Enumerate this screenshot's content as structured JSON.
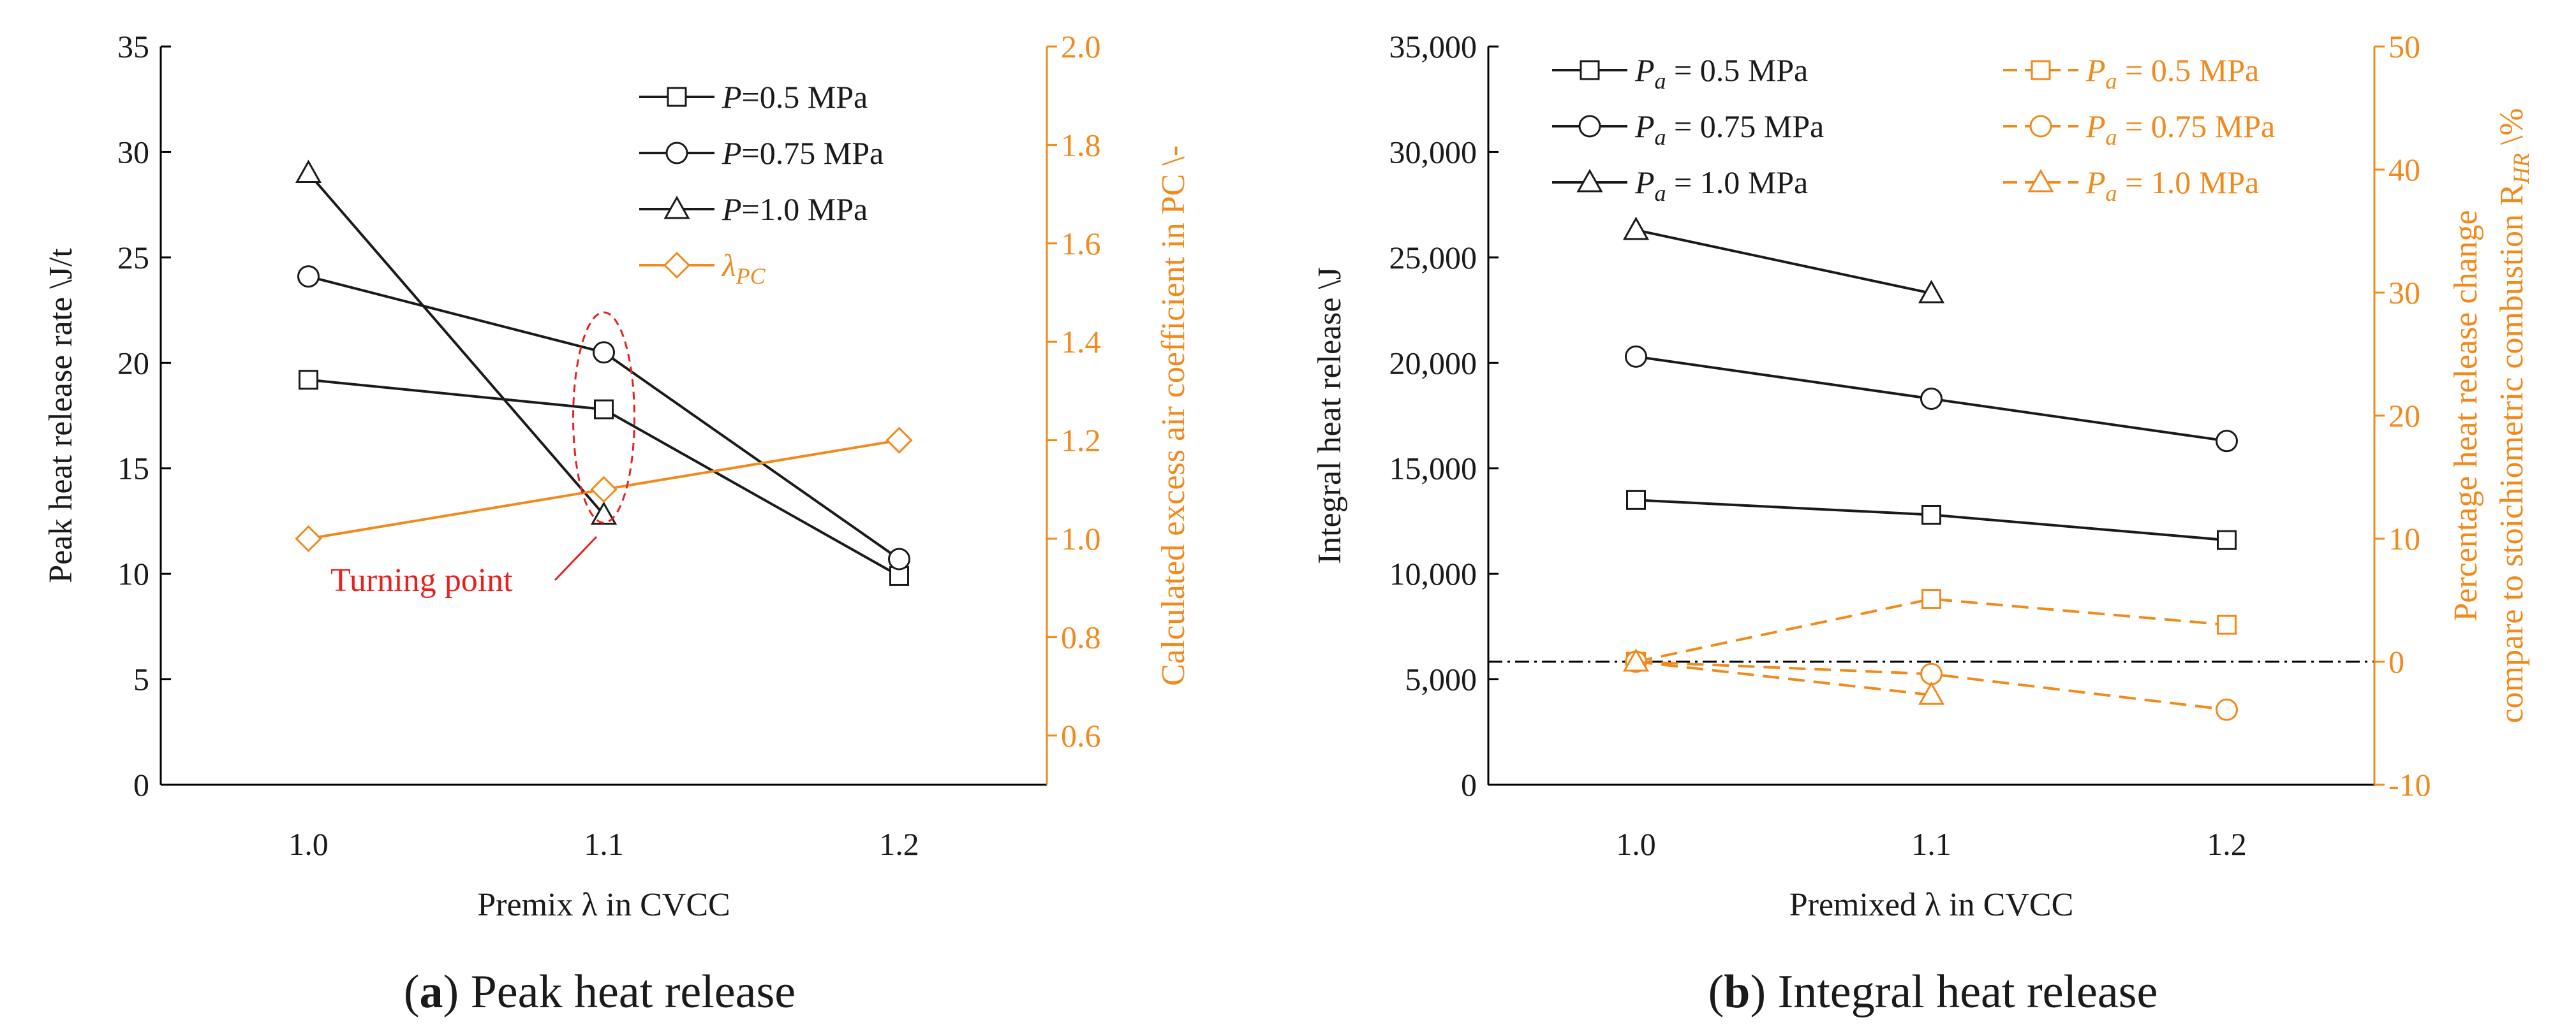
{
  "colors": {
    "black": "#1a1a1a",
    "orange": "#f08a1c",
    "red": "#e8201e"
  },
  "chart_data": [
    {
      "id": "a",
      "type": "line",
      "caption_letter": "a",
      "caption": "Peak heat release",
      "categories": [
        "1.0",
        "1.1",
        "1.2"
      ],
      "x": [
        1.0,
        1.1,
        1.2
      ],
      "xlim": [
        0.95,
        1.25
      ],
      "xlabel": "Premix λ in CVCC",
      "ylabel": "Peak heat release rate \\J/t",
      "ylim": [
        0,
        35
      ],
      "yticks": [
        "0",
        "5",
        "10",
        "15",
        "20",
        "25",
        "30",
        "35"
      ],
      "y2label": "Calculated excess air coefficient in PC \\-",
      "y2lim": [
        0.5,
        2.0
      ],
      "y2ticks": [
        "0.6",
        "0.8",
        "1.0",
        "1.2",
        "1.4",
        "1.6",
        "1.8",
        "2.0"
      ],
      "series": [
        {
          "name": "P=0.5 MPa",
          "legend_italic": "P",
          "legend_rest": "=0.5 MPa",
          "marker": "square",
          "axis": "left",
          "color": "#1a1a1a",
          "dashed": false,
          "x": [
            1.0,
            1.1,
            1.2
          ],
          "values": [
            19.2,
            17.8,
            9.9
          ]
        },
        {
          "name": "P=0.75 MPa",
          "legend_italic": "P",
          "legend_rest": "=0.75 MPa",
          "marker": "circle",
          "axis": "left",
          "color": "#1a1a1a",
          "dashed": false,
          "x": [
            1.0,
            1.1,
            1.2
          ],
          "values": [
            24.1,
            20.5,
            10.7
          ]
        },
        {
          "name": "P=1.0 MPa",
          "legend_italic": "P",
          "legend_rest": "=1.0 MPa",
          "marker": "triangle",
          "axis": "left",
          "color": "#1a1a1a",
          "dashed": false,
          "x": [
            1.0,
            1.1
          ],
          "values": [
            29.0,
            12.8
          ]
        },
        {
          "name": "λPC",
          "legend_italic": "λ",
          "legend_sub": "PC",
          "marker": "diamond",
          "axis": "right",
          "color": "#f08a1c",
          "dashed": false,
          "x": [
            1.0,
            1.1,
            1.2
          ],
          "values": [
            1.0,
            1.1,
            1.2
          ]
        }
      ],
      "annotation": {
        "text": "Turning point",
        "x": 1.1
      }
    },
    {
      "id": "b",
      "type": "line",
      "caption_letter": "b",
      "caption": "Integral heat release",
      "categories": [
        "1.0",
        "1.1",
        "1.2"
      ],
      "x": [
        1.0,
        1.1,
        1.2
      ],
      "xlim": [
        0.95,
        1.25
      ],
      "xlabel": "Premixed λ in CVCC",
      "ylabel": "Integral heat release \\J",
      "ylim": [
        0,
        35000
      ],
      "yticks": [
        "0",
        "5,000",
        "10,000",
        "15,000",
        "20,000",
        "25,000",
        "30,000",
        "35,000"
      ],
      "y2label_line1": "Percentage heat release change",
      "y2label_line2": "compare to stoichiometric combustion R",
      "y2label_sub": "HR",
      "y2label_end": " \\%",
      "y2lim": [
        -10,
        50
      ],
      "y2ticks": [
        "-10",
        "0",
        "10",
        "20",
        "30",
        "40",
        "50"
      ],
      "reference_line_y2": 0,
      "series": [
        {
          "name": "Pa = 0.5 MPa",
          "legend_italic": "P",
          "legend_sub": "a",
          "legend_rest": " = 0.5 MPa",
          "marker": "square",
          "axis": "left",
          "color": "#1a1a1a",
          "dashed": false,
          "x": [
            1.0,
            1.1,
            1.2
          ],
          "values": [
            13500,
            12800,
            11600
          ]
        },
        {
          "name": "Pa = 0.75 MPa",
          "legend_italic": "P",
          "legend_sub": "a",
          "legend_rest": " = 0.75 MPa",
          "marker": "circle",
          "axis": "left",
          "color": "#1a1a1a",
          "dashed": false,
          "x": [
            1.0,
            1.1,
            1.2
          ],
          "values": [
            20300,
            18300,
            16300
          ]
        },
        {
          "name": "Pa = 1.0 MPa",
          "legend_italic": "P",
          "legend_sub": "a",
          "legend_rest": " = 1.0 MPa",
          "marker": "triangle",
          "axis": "left",
          "color": "#1a1a1a",
          "dashed": false,
          "x": [
            1.0,
            1.1
          ],
          "values": [
            26300,
            23300
          ]
        },
        {
          "name": "Pa = 0.5 MPa (RHR)",
          "legend_italic": "P",
          "legend_sub": "a",
          "legend_rest": " = 0.5 MPa",
          "marker": "square",
          "axis": "right",
          "color": "#f08a1c",
          "dashed": true,
          "x": [
            1.0,
            1.1,
            1.2
          ],
          "values": [
            0,
            5.1,
            3.0
          ]
        },
        {
          "name": "Pa = 0.75 MPa (RHR)",
          "legend_italic": "P",
          "legend_sub": "a",
          "legend_rest": " = 0.75 MPa",
          "marker": "circle",
          "axis": "right",
          "color": "#f08a1c",
          "dashed": true,
          "x": [
            1.0,
            1.1,
            1.2
          ],
          "values": [
            0,
            -1.0,
            -3.9
          ]
        },
        {
          "name": "Pa = 1.0 MPa (RHR)",
          "legend_italic": "P",
          "legend_sub": "a",
          "legend_rest": " = 1.0 MPa",
          "marker": "triangle",
          "axis": "right",
          "color": "#f08a1c",
          "dashed": true,
          "x": [
            1.0,
            1.1
          ],
          "values": [
            0,
            -2.7
          ]
        }
      ]
    }
  ]
}
